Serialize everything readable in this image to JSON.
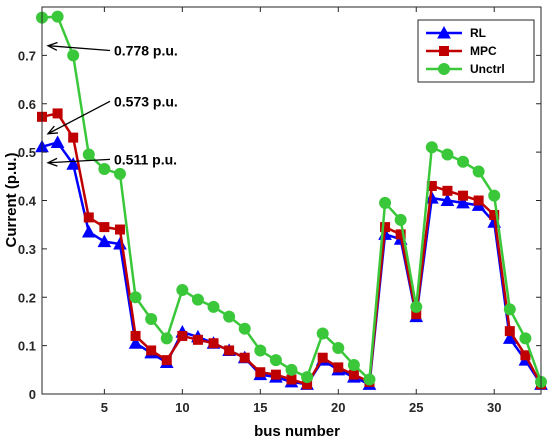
{
  "chart_data": {
    "type": "line",
    "title": "",
    "xlabel": "bus number",
    "ylabel": "Current (p.u.)",
    "xlim": [
      1,
      33
    ],
    "ylim": [
      0,
      0.8
    ],
    "xticks": [
      5,
      10,
      15,
      20,
      25,
      30
    ],
    "yticks": [
      0,
      0.1,
      0.2,
      0.3,
      0.4,
      0.5,
      0.6,
      0.7
    ],
    "grid": false,
    "legend_position": "top-right",
    "x": [
      1,
      2,
      3,
      4,
      5,
      6,
      7,
      8,
      9,
      10,
      11,
      12,
      13,
      14,
      15,
      16,
      17,
      18,
      19,
      20,
      21,
      22,
      23,
      24,
      25,
      26,
      27,
      28,
      29,
      30,
      31,
      32,
      33
    ],
    "series": [
      {
        "name": "RL",
        "color": "#0000ff",
        "marker": "triangle",
        "values": [
          0.511,
          0.52,
          0.475,
          0.335,
          0.315,
          0.31,
          0.105,
          0.085,
          0.065,
          0.128,
          0.118,
          0.105,
          0.09,
          0.075,
          0.04,
          0.035,
          0.025,
          0.02,
          0.07,
          0.05,
          0.035,
          0.02,
          0.33,
          0.32,
          0.16,
          0.405,
          0.4,
          0.395,
          0.39,
          0.355,
          0.115,
          0.07,
          0.02
        ]
      },
      {
        "name": "MPC",
        "color": "#c00000",
        "marker": "square",
        "values": [
          0.573,
          0.58,
          0.53,
          0.365,
          0.345,
          0.34,
          0.12,
          0.09,
          0.07,
          0.12,
          0.112,
          0.105,
          0.09,
          0.075,
          0.045,
          0.04,
          0.03,
          0.02,
          0.075,
          0.055,
          0.04,
          0.025,
          0.345,
          0.33,
          0.165,
          0.43,
          0.42,
          0.41,
          0.4,
          0.37,
          0.13,
          0.08,
          0.02
        ]
      },
      {
        "name": "Unctrl",
        "color": "#3ac83a",
        "marker": "circle",
        "values": [
          0.778,
          0.78,
          0.7,
          0.495,
          0.465,
          0.455,
          0.2,
          0.155,
          0.115,
          0.215,
          0.195,
          0.18,
          0.16,
          0.135,
          0.09,
          0.07,
          0.05,
          0.035,
          0.125,
          0.095,
          0.06,
          0.03,
          0.395,
          0.36,
          0.18,
          0.51,
          0.495,
          0.48,
          0.46,
          0.41,
          0.175,
          0.115,
          0.025
        ]
      }
    ],
    "annotations": [
      {
        "text": "0.778 p.u.",
        "target_y": 0.72,
        "label_y": 0.71
      },
      {
        "text": "0.573 p.u.",
        "target_y": 0.538,
        "label_y": 0.605
      },
      {
        "text": "0.511 p.u.",
        "target_y": 0.478,
        "label_y": 0.485
      }
    ]
  }
}
